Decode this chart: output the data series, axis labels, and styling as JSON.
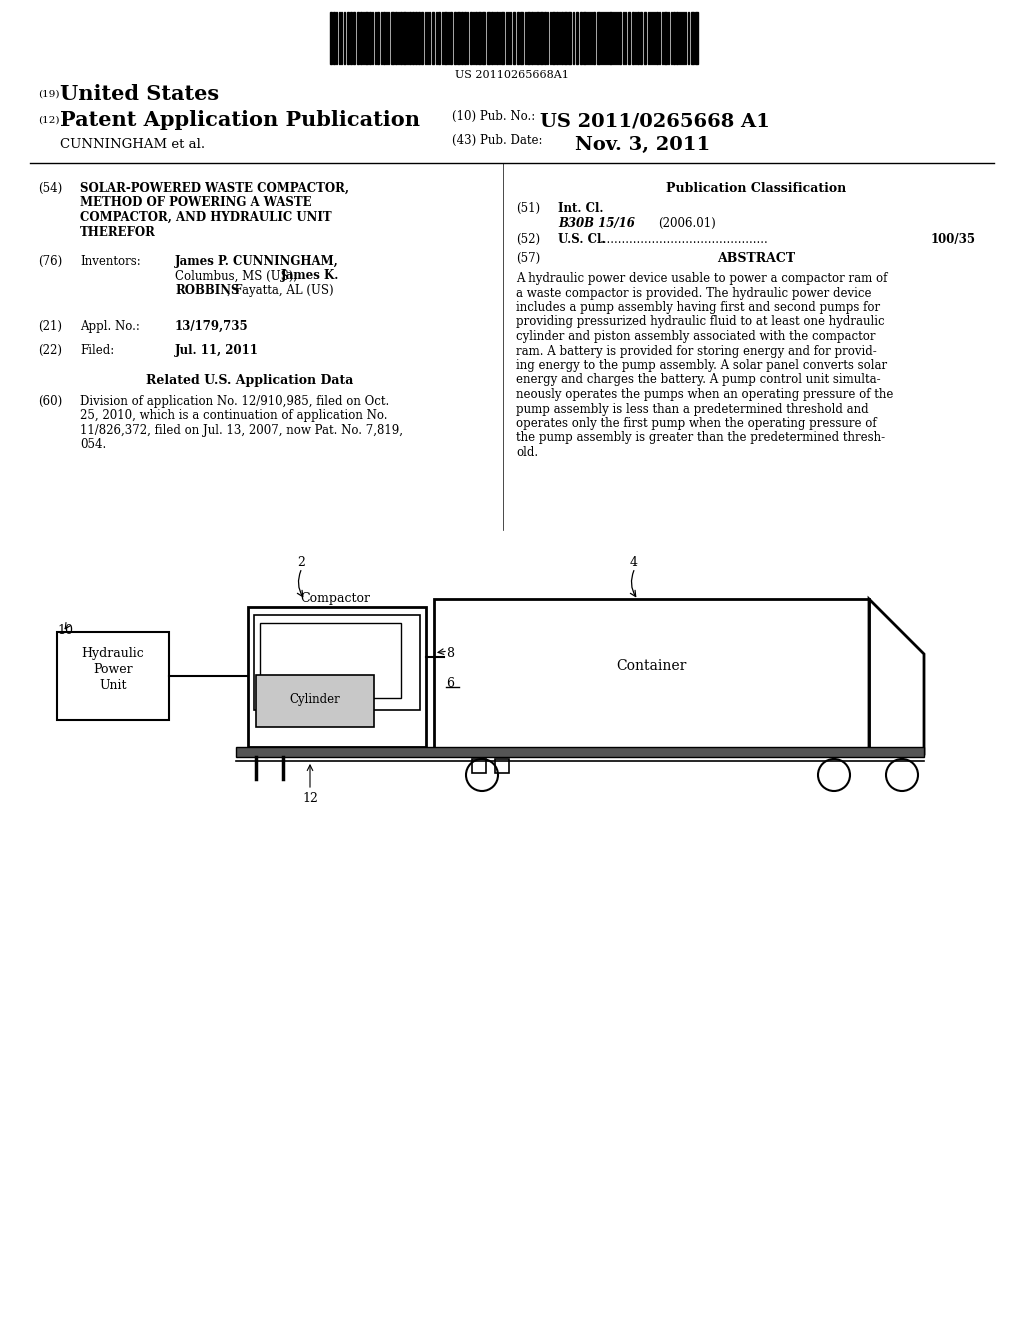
{
  "background_color": "#ffffff",
  "barcode_text": "US 20110265668A1",
  "header_19_super": "(19)",
  "header_19_text": "United States",
  "header_12_super": "(12)",
  "header_12_text": "Patent Application Publication",
  "header_cunningham": "CUNNINGHAM et al.",
  "header_10_label": "(10) Pub. No.:",
  "header_10_value": "US 2011/0265668 A1",
  "header_43_label": "(43) Pub. Date:",
  "header_43_value": "Nov. 3, 2011",
  "field_54_label": "(54)",
  "field_54_line1": "SOLAR-POWERED WASTE COMPACTOR,",
  "field_54_line2": "METHOD OF POWERING A WASTE",
  "field_54_line3": "COMPACTOR, AND HYDRAULIC UNIT",
  "field_54_line4": "THEREFOR",
  "field_76_label": "(76)",
  "field_76_key": "Inventors:",
  "field_76_name1": "James P. CUNNINGHAM,",
  "field_76_line2a": "Columbus, MS (US); ",
  "field_76_line2b": "James K.",
  "field_76_name2": "ROBBINS",
  "field_76_line3b": ", Fayatta, AL (US)",
  "field_21_label": "(21)",
  "field_21_key": "Appl. No.:",
  "field_21_value": "13/179,735",
  "field_22_label": "(22)",
  "field_22_key": "Filed:",
  "field_22_value": "Jul. 11, 2011",
  "related_title": "Related U.S. Application Data",
  "field_60_label": "(60)",
  "field_60_line1": "Division of application No. 12/910,985, filed on Oct.",
  "field_60_line2": "25, 2010, which is a continuation of application No.",
  "field_60_line3": "11/826,372, filed on Jul. 13, 2007, now Pat. No. 7,819,",
  "field_60_line4": "054.",
  "pub_class_title": "Publication Classification",
  "field_51_label": "(51)",
  "field_51_key": "Int. Cl.",
  "field_51_class": "B30B 15/16",
  "field_51_year": "(2006.01)",
  "field_52_label": "(52)",
  "field_52_key": "U.S. Cl.",
  "field_52_dots": ".............................................",
  "field_52_value": "100/35",
  "field_57_label": "(57)",
  "field_57_key": "ABSTRACT",
  "abstract_lines": [
    "A hydraulic power device usable to power a compactor ram of",
    "a waste compactor is provided. The hydraulic power device",
    "includes a pump assembly having first and second pumps for",
    "providing pressurized hydraulic fluid to at least one hydraulic",
    "cylinder and piston assembly associated with the compactor",
    "ram. A battery is provided for storing energy and for provid-",
    "ing energy to the pump assembly. A solar panel converts solar",
    "energy and charges the battery. A pump control unit simulta-",
    "neously operates the pumps when an operating pressure of the",
    "pump assembly is less than a predetermined threshold and",
    "operates only the first pump when the operating pressure of",
    "the pump assembly is greater than the predetermined thresh-",
    "old."
  ],
  "diag_label_2": "2",
  "diag_label_4": "4",
  "diag_label_10": "10",
  "diag_label_compactor": "Compactor",
  "diag_label_container": "Container",
  "diag_label_hpu1": "Hydraulic",
  "diag_label_hpu2": "Power",
  "diag_label_hpu3": "Unit",
  "diag_label_cylinder": "Cylinder",
  "diag_label_8": "8",
  "diag_label_6": "6",
  "diag_label_12": "12"
}
